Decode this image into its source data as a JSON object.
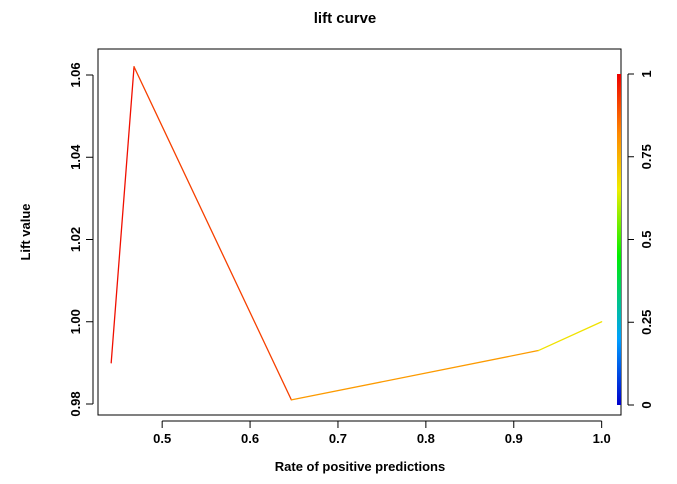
{
  "chart_data": {
    "type": "line",
    "title": "lift curve",
    "xlabel": "Rate of positive predictions",
    "ylabel": "Lift value",
    "xlim": [
      0.427,
      1.022
    ],
    "ylim": [
      0.9975,
      1.0635
    ],
    "xticks": [
      0.5,
      0.6,
      0.7,
      0.8,
      0.9,
      1.0
    ],
    "xtick_labels": [
      "0.5",
      "0.6",
      "0.7",
      "0.8",
      "0.9",
      "1.0"
    ],
    "yticks": [
      0.98,
      1.0,
      1.02,
      1.04,
      1.06
    ],
    "ytick_labels": [
      "0.98",
      "1.00",
      "1.02",
      "1.04",
      "1.06"
    ],
    "grid": false,
    "points": [
      {
        "x": 0.442,
        "y": 0.99,
        "cutoff": 0.99
      },
      {
        "x": 0.468,
        "y": 1.062,
        "cutoff": 0.97
      },
      {
        "x": 0.647,
        "y": 0.981,
        "cutoff": 0.86
      },
      {
        "x": 0.928,
        "y": 0.993,
        "cutoff": 0.72
      },
      {
        "x": 1.0,
        "y": 1.0,
        "cutoff": 0.62
      }
    ],
    "colorbar": {
      "range": [
        0,
        1
      ],
      "ticks": [
        0,
        0.25,
        0.5,
        0.75,
        1
      ],
      "tick_labels": [
        "0",
        "0.25",
        "0.5",
        "0.75",
        "1"
      ],
      "colors": [
        "#0000cc",
        "#00a0ff",
        "#00ee00",
        "#eeee00",
        "#ff8800",
        "#ee0000"
      ]
    }
  }
}
